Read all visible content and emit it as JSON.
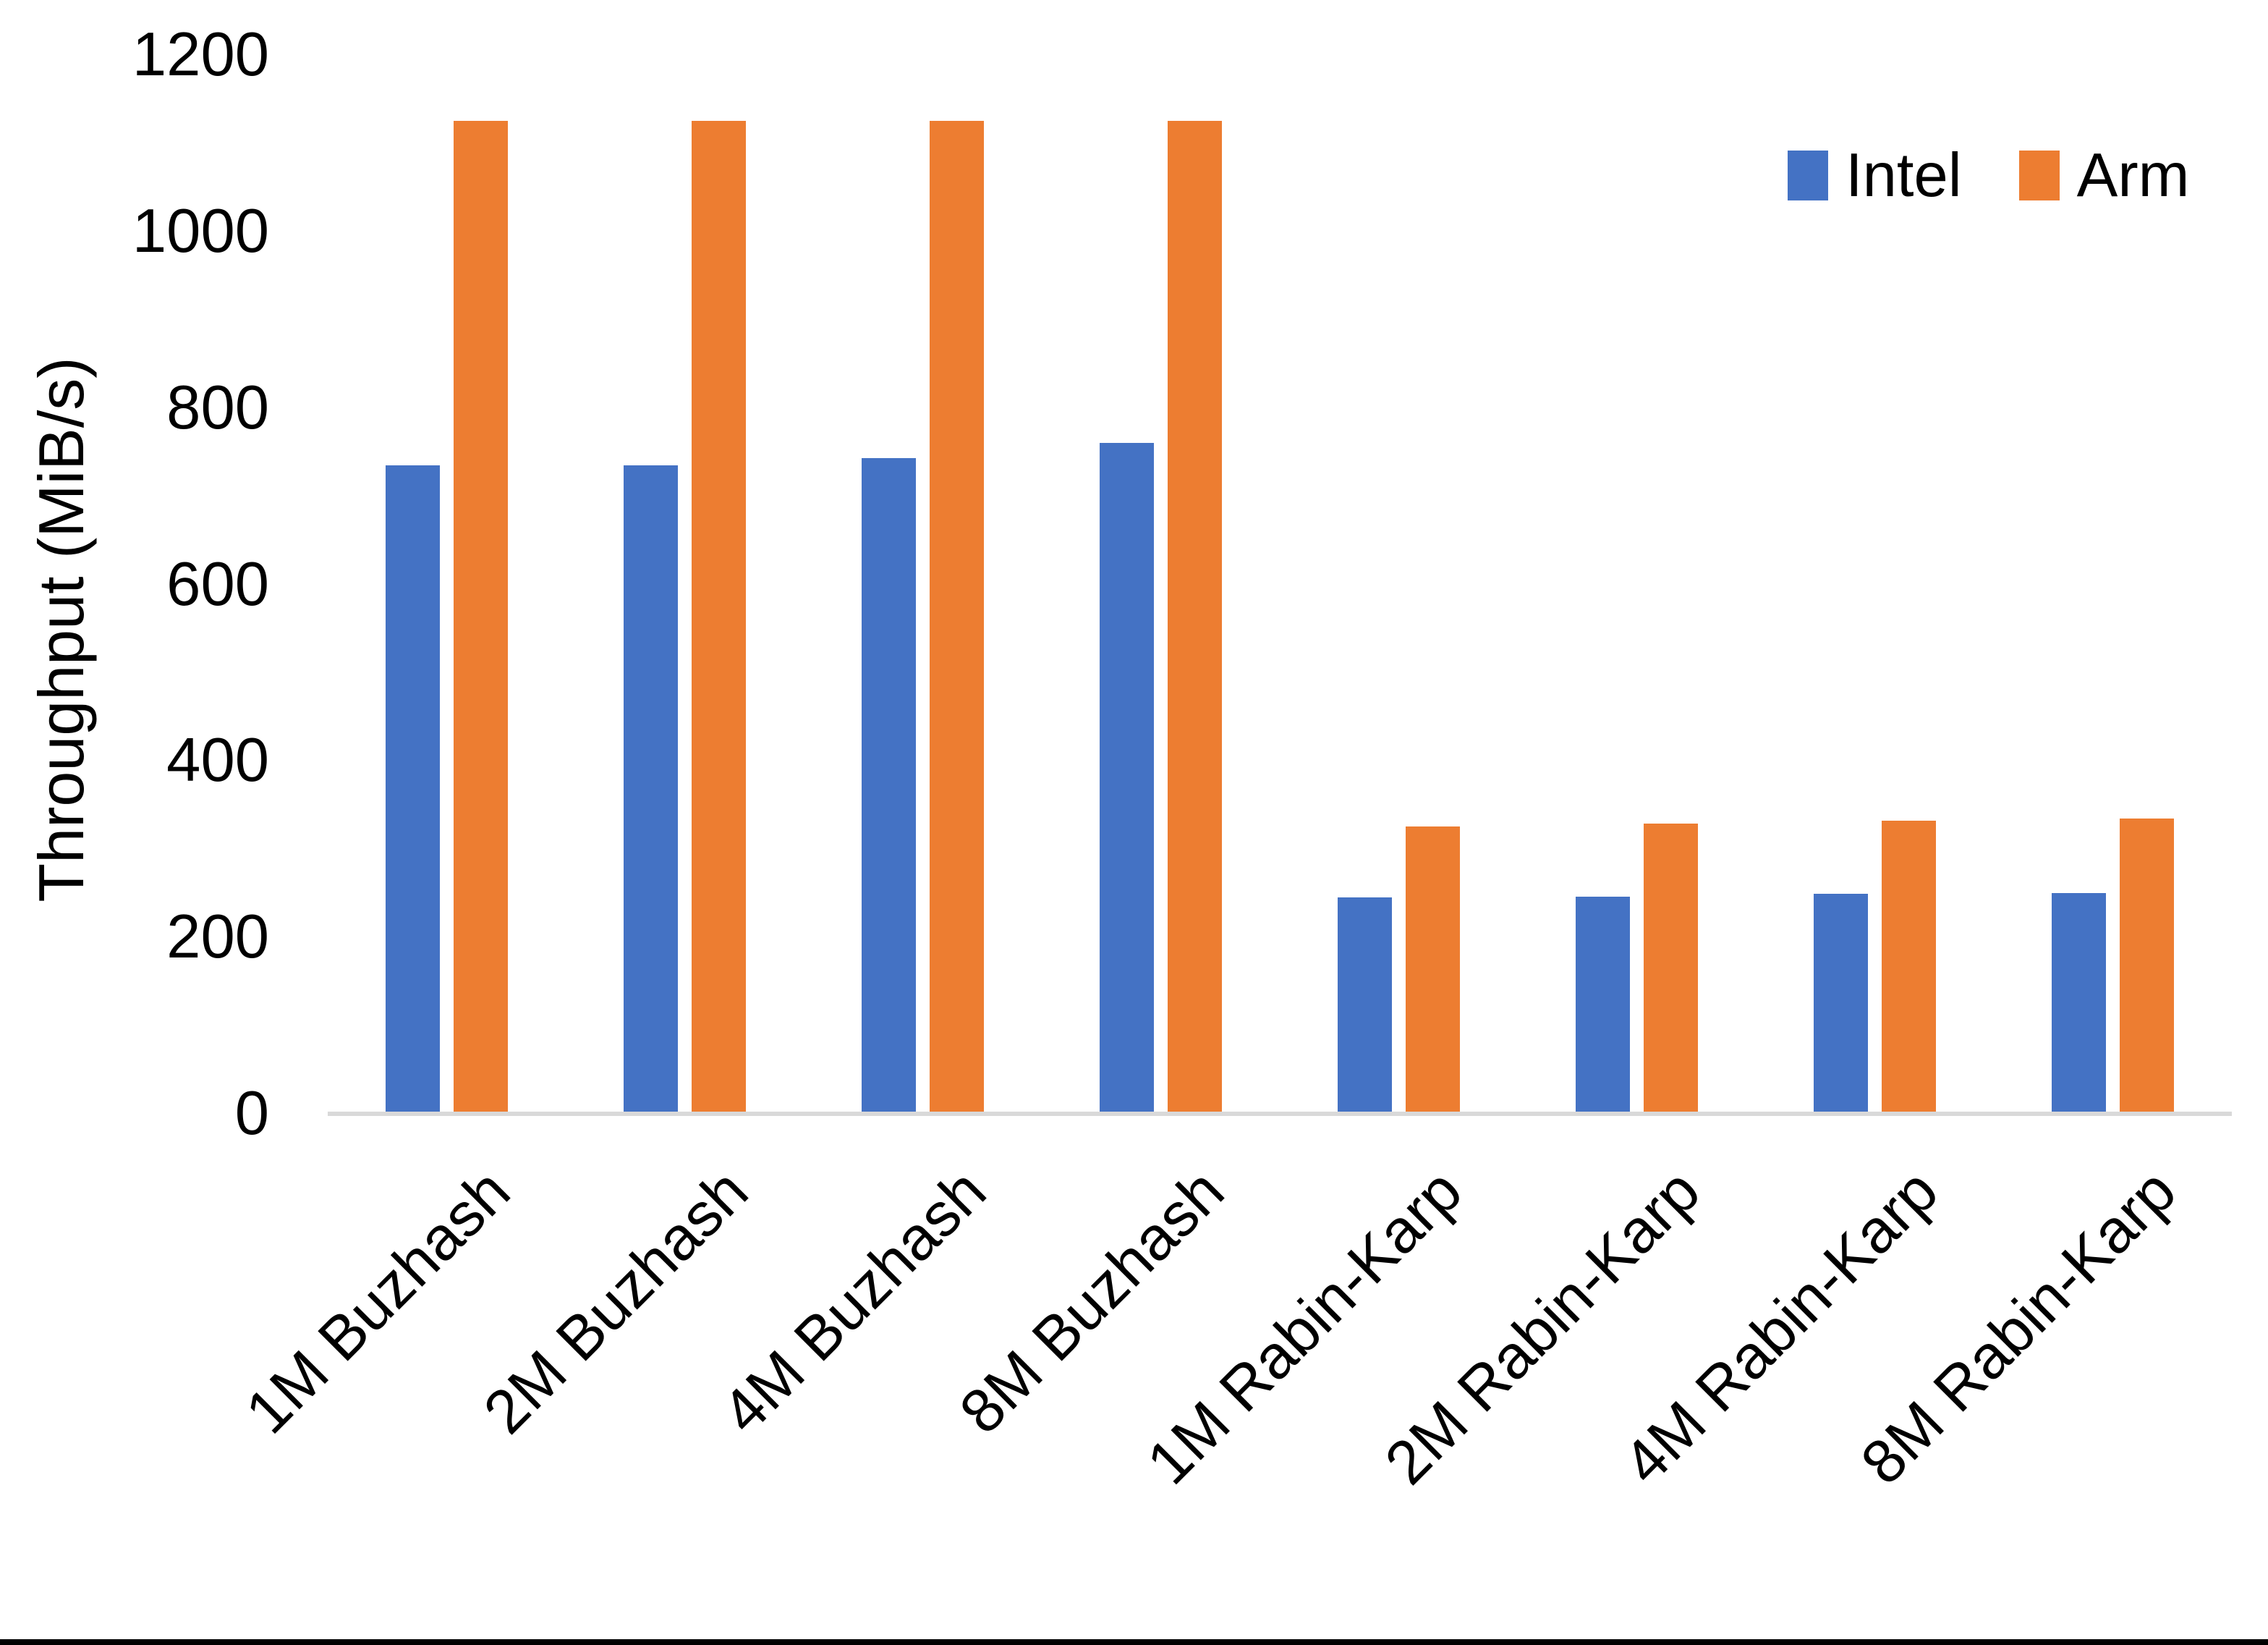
{
  "page": {
    "background": "#ffffff",
    "bottom_border_color": "#000000"
  },
  "chart_data": {
    "type": "bar",
    "title": "",
    "xlabel": "",
    "ylabel": "Throughput (MiB/s)",
    "ylim": [
      0,
      1200
    ],
    "yticks": [
      0,
      200,
      400,
      600,
      800,
      1000,
      1200
    ],
    "grid": false,
    "legend_position": "top-right",
    "axis_line_color": "#D9D9D9",
    "text_color": "#000000",
    "categories": [
      "1M Buzhash",
      "2M Buzhash",
      "4M Buzhash",
      "8M Buzhash",
      "1M Rabin-Karp",
      "2M Rabin-Karp",
      "4M Rabin-Karp",
      "8M Rabin-Karp"
    ],
    "series": [
      {
        "name": "Intel",
        "color": "#4472C4",
        "values": [
          735,
          735,
          743,
          760,
          245,
          246,
          249,
          250
        ]
      },
      {
        "name": "Arm",
        "color": "#ED7D31",
        "values": [
          1125,
          1125,
          1125,
          1125,
          326,
          329,
          332,
          335
        ]
      }
    ]
  }
}
